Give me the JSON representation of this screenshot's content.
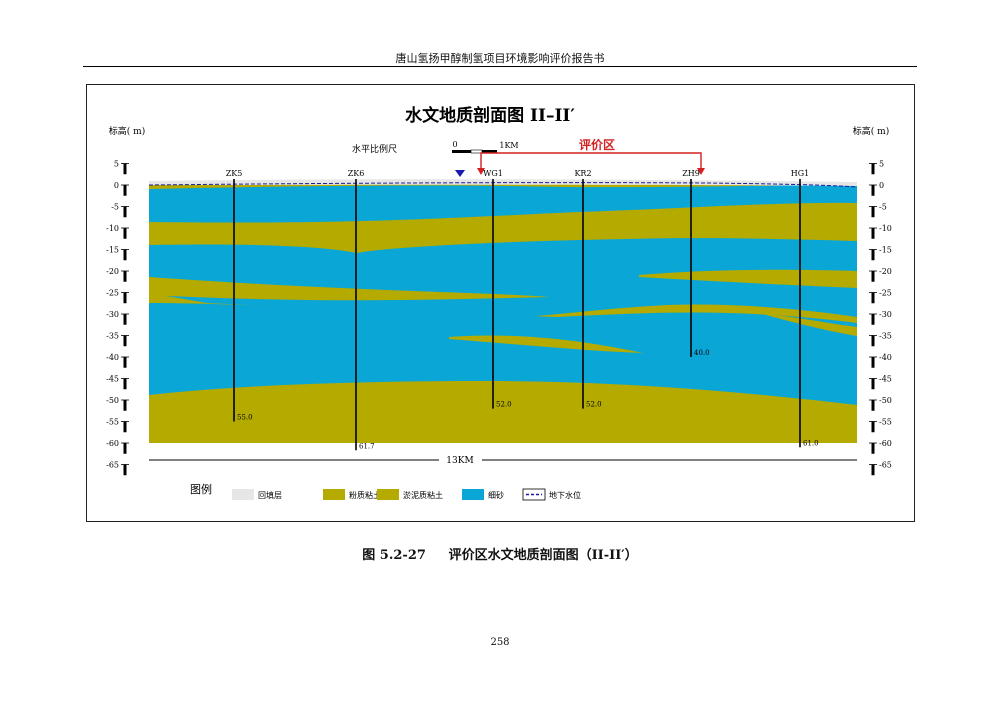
{
  "header": {
    "title": "唐山氢扬甲醇制氢项目环境影响评价报告书"
  },
  "figure": {
    "title": "水文地质剖面图  II–II′",
    "scale_label": "水平比例尺",
    "scale_zero": "0",
    "scale_end": "1KM",
    "eval_zone_label": "评价区",
    "axis_title_left": "标高( m)",
    "axis_title_right": "标高( m)",
    "y_ticks": [
      "5",
      "0",
      "-5",
      "-10",
      "-15",
      "-20",
      "-25",
      "-30",
      "-35",
      "-40",
      "-45",
      "-50",
      "-55",
      "-60",
      "-65"
    ],
    "boreholes": [
      {
        "name": "ZK5",
        "depth_label": "55.0"
      },
      {
        "name": "ZK6",
        "depth_label": "61.7"
      },
      {
        "name": "WG1",
        "depth_label": "52.0"
      },
      {
        "name": "KR2",
        "depth_label": "52.0"
      },
      {
        "name": "ZH9",
        "depth_label": "40.0"
      },
      {
        "name": "HG1",
        "depth_label": "61.0"
      }
    ],
    "distance_label": "13KM",
    "legend_title": "图例",
    "legend_items": [
      {
        "label": "回填层",
        "color": "#e6e6e6"
      },
      {
        "label": "粉质粘土",
        "color": "#b4aa00"
      },
      {
        "label": "淤泥质粘土",
        "color": "#b4aa00"
      },
      {
        "label": "细砂",
        "color": "#0aa6d6"
      },
      {
        "label": "地下水位",
        "color": "#1a1aa8"
      }
    ],
    "colors": {
      "sand": "#0aa6d6",
      "clay": "#b4aa00",
      "fill": "#e6e6e6",
      "water_table": "#1a1aa8",
      "eval_zone": "#d42020"
    }
  },
  "caption": {
    "number": "图 5.2-27",
    "text": "评价区水文地质剖面图（II-II′）"
  },
  "page_number": "258"
}
